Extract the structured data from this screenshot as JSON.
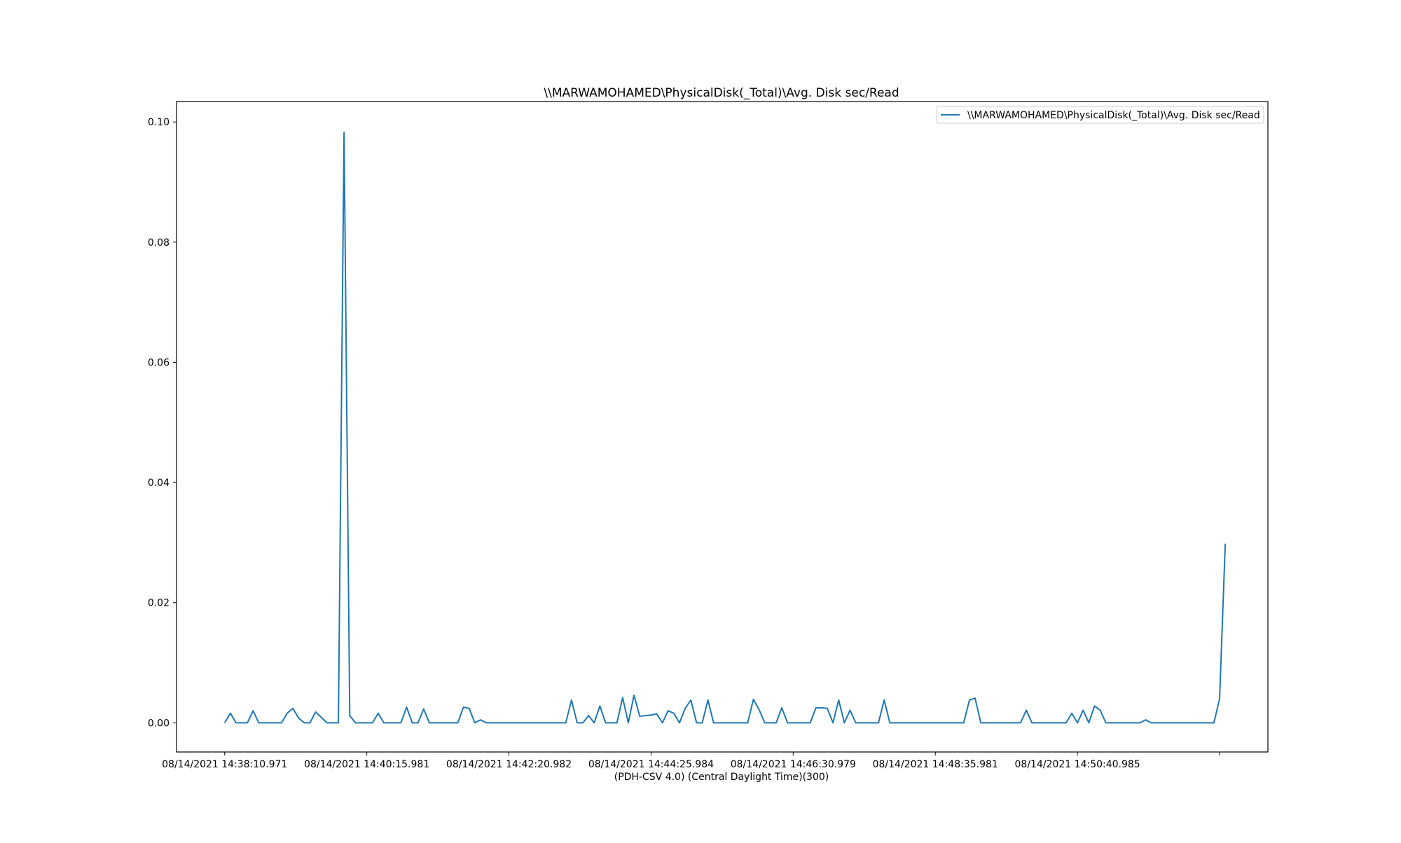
{
  "chart_data": {
    "type": "line",
    "title": "\\\\MARWAMOHAMED\\PhysicalDisk(_Total)\\Avg. Disk sec/Read",
    "xlabel": "(PDH-CSV 4.0) (Central Daylight Time)(300)",
    "ylabel": "",
    "ylim": [
      -0.00485,
      0.1034
    ],
    "xlim": [
      -8.47,
      183.5
    ],
    "grid": false,
    "legend_position": "top-right",
    "x_ticks": [
      {
        "x": 0,
        "label": "08/14/2021 14:38:10.971"
      },
      {
        "x": 25,
        "label": "08/14/2021 14:40:15.981"
      },
      {
        "x": 50,
        "label": "08/14/2021 14:42:20.982"
      },
      {
        "x": 75,
        "label": "08/14/2021 14:44:25.984"
      },
      {
        "x": 100,
        "label": "08/14/2021 14:46:30.979"
      },
      {
        "x": 125,
        "label": "08/14/2021 14:48:35.981"
      },
      {
        "x": 150,
        "label": "08/14/2021 14:50:40.985"
      },
      {
        "x": 175,
        "label": ""
      }
    ],
    "y_ticks": [
      "0.00",
      "0.02",
      "0.04",
      "0.06",
      "0.08",
      "0.10"
    ],
    "series": [
      {
        "name": "\\\\MARWAMOHAMED\\PhysicalDisk(_Total)\\Avg. Disk sec/Read",
        "color": "#1f77b4",
        "values": [
          0,
          0.0016,
          0,
          0,
          0,
          0.002,
          0,
          0,
          0,
          0,
          0,
          0.0016,
          0.0024,
          0.0008,
          0,
          0,
          0.0018,
          0.0009,
          0,
          0,
          0,
          0.0983,
          0.0012,
          0,
          0,
          0,
          0,
          0.0016,
          0,
          0,
          0,
          0,
          0.0026,
          0,
          0,
          0.0023,
          0,
          0,
          0,
          0,
          0,
          0,
          0.0026,
          0.0024,
          0,
          0.0005,
          0,
          0,
          0,
          0,
          0,
          0,
          0,
          0,
          0,
          0,
          0,
          0,
          0,
          0,
          0,
          0.0038,
          0,
          0,
          0.0012,
          0,
          0.0028,
          0,
          0,
          0,
          0.0042,
          0,
          0.0046,
          0.0011,
          0.0012,
          0.0013,
          0.0015,
          0,
          0.002,
          0.0016,
          0,
          0.0024,
          0.0038,
          0,
          0,
          0.0038,
          0,
          0,
          0,
          0,
          0,
          0,
          0,
          0.0039,
          0.0022,
          0,
          0,
          0,
          0.0025,
          0,
          0,
          0,
          0,
          0,
          0.0025,
          0.0025,
          0.0024,
          0,
          0.0038,
          0,
          0.0021,
          0,
          0,
          0,
          0,
          0,
          0.0038,
          0,
          0,
          0,
          0,
          0,
          0,
          0,
          0,
          0,
          0,
          0,
          0,
          0,
          0,
          0.0038,
          0.0041,
          0,
          0,
          0,
          0,
          0,
          0,
          0,
          0,
          0.0021,
          0,
          0,
          0,
          0,
          0,
          0,
          0,
          0.0016,
          0,
          0.0021,
          0,
          0.0028,
          0.0021,
          0,
          0,
          0,
          0,
          0,
          0,
          0,
          0.0005,
          0,
          0,
          0,
          0,
          0,
          0,
          0,
          0,
          0,
          0,
          0,
          0,
          0.004,
          0.0298
        ]
      }
    ]
  }
}
